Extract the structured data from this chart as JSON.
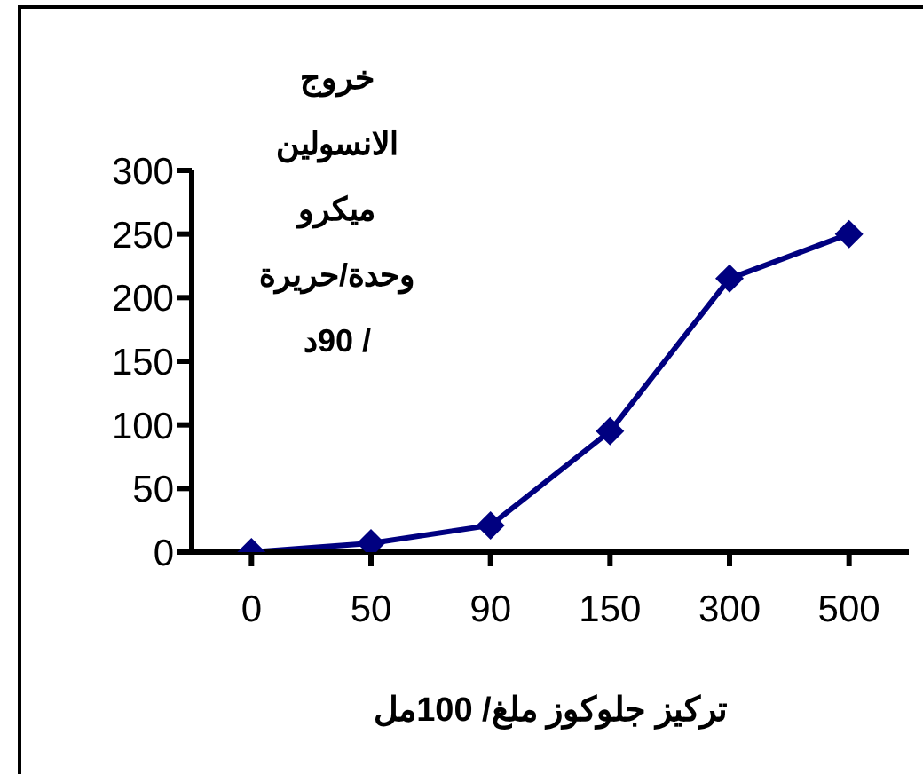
{
  "chart_data": {
    "type": "line",
    "xlabel": "تركيز جلوكوز ملغ/ 100مل",
    "ylabel": "خروج\nالانسولين\nميكرو\nوحدة/حريرة\n/ 90د",
    "categories": [
      "0",
      "50",
      "90",
      "150",
      "300",
      "500"
    ],
    "series": [
      {
        "color": "#000080",
        "values": [
          0,
          7,
          21,
          95,
          215,
          250
        ]
      }
    ],
    "ylim": [
      0,
      300
    ],
    "yticks": [
      0,
      50,
      100,
      150,
      200,
      250,
      300
    ],
    "grid": false,
    "legend": false,
    "marker": "diamond",
    "line_style": "solid"
  }
}
